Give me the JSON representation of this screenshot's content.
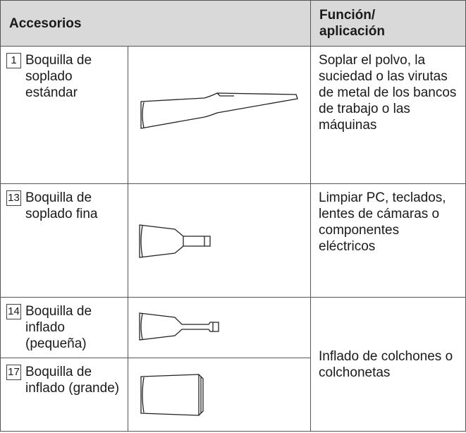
{
  "table": {
    "header": [
      "Accesorios",
      "Función/ aplicación"
    ],
    "rows": [
      {
        "number": "1",
        "name": "Boquilla de soplado estándar",
        "function": "Soplar el polvo, la suciedad o las virutas de metal de los bancos de trabajo o las máquinas"
      },
      {
        "number": "13",
        "name": "Boquilla de soplado fina",
        "function": "Limpiar PC, teclados, lentes de cámaras o componentes eléctricos"
      },
      {
        "number": "14",
        "name": "Boquilla de inflado (pequeña)",
        "function": "Inflado de colchones o colchonetas"
      },
      {
        "number": "17",
        "name": "Boquilla de inflado (grande)"
      }
    ]
  }
}
